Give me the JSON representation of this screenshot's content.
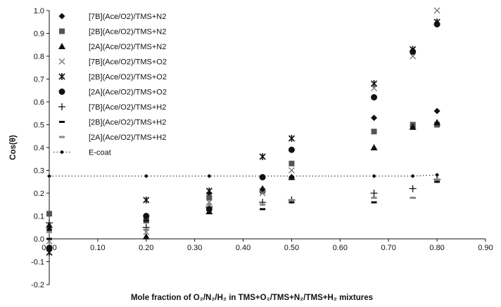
{
  "chart_data": {
    "type": "scatter",
    "xlabel": "Mole fraction of O₂/N₂/H₂ in TMS+O₂/TMS+N₂/TMS+H₂ mixtures",
    "ylabel": "Cos(θ)",
    "xlim": [
      0,
      0.9
    ],
    "ylim": [
      -0.2,
      1.0
    ],
    "x_ticks": [
      "0.00",
      "0.10",
      "0.20",
      "0.30",
      "0.40",
      "0.50",
      "0.60",
      "0.70",
      "0.80",
      "0.90"
    ],
    "y_ticks": [
      "-0.2",
      "-0.1",
      "0.0",
      "0.1",
      "0.2",
      "0.3",
      "0.4",
      "0.5",
      "0.6",
      "0.7",
      "0.8",
      "0.9",
      "1.0"
    ],
    "grid": false,
    "legend_position": "top-left",
    "series": [
      {
        "name": "[7B](Ace/O2)/TMS+N2",
        "marker": "diamond",
        "color": "#111111",
        "x": [
          0.0,
          0.2,
          0.33,
          0.44,
          0.5,
          0.67,
          0.75,
          0.8
        ],
        "y": [
          0.04,
          0.1,
          0.2,
          0.27,
          0.27,
          0.53,
          0.49,
          0.56
        ]
      },
      {
        "name": "[2B](Ace/O2)/TMS+N2",
        "marker": "square",
        "color": "#555555",
        "x": [
          0.0,
          0.2,
          0.33,
          0.44,
          0.5,
          0.67,
          0.75,
          0.8
        ],
        "y": [
          0.11,
          0.08,
          0.18,
          0.21,
          0.33,
          0.47,
          0.5,
          0.5
        ]
      },
      {
        "name": "[2A](Ace/O2)/TMS+N2",
        "marker": "triangle",
        "color": "#111111",
        "x": [
          0.0,
          0.2,
          0.33,
          0.44,
          0.5,
          0.67,
          0.75,
          0.8
        ],
        "y": [
          0.06,
          0.01,
          0.12,
          0.22,
          0.27,
          0.4,
          0.49,
          0.51
        ]
      },
      {
        "name": "[7B](Ace/O2)/TMS+O2",
        "marker": "x",
        "color": "#777777",
        "x": [
          0.0,
          0.2,
          0.33,
          0.44,
          0.5,
          0.67,
          0.75,
          0.8
        ],
        "y": [
          -0.01,
          0.03,
          0.16,
          0.2,
          0.3,
          0.66,
          0.8,
          1.0
        ]
      },
      {
        "name": "[2B](Ace/O2)/TMS+O2",
        "marker": "star",
        "color": "#111111",
        "x": [
          0.0,
          0.2,
          0.33,
          0.44,
          0.5,
          0.67,
          0.75,
          0.8
        ],
        "y": [
          -0.06,
          0.17,
          0.21,
          0.36,
          0.44,
          0.68,
          0.83,
          0.95
        ]
      },
      {
        "name": "[2A](Ace/O2)/TMS+O2",
        "marker": "circle",
        "color": "#111111",
        "x": [
          0.0,
          0.2,
          0.33,
          0.44,
          0.5,
          0.67,
          0.75,
          0.8
        ],
        "y": [
          -0.04,
          0.1,
          0.13,
          0.27,
          0.39,
          0.62,
          0.82,
          0.94
        ]
      },
      {
        "name": "[7B](Ace/O2)/TMS+H2",
        "marker": "plus",
        "color": "#111111",
        "x": [
          0.0,
          0.2,
          0.33,
          0.44,
          0.5,
          0.67,
          0.75,
          0.8
        ],
        "y": [
          0.07,
          0.05,
          0.14,
          0.16,
          0.17,
          0.2,
          0.22,
          0.26
        ]
      },
      {
        "name": "[2B](Ace/O2)/TMS+H2",
        "marker": "dash",
        "color": "#111111",
        "x": [
          0.0,
          0.2,
          0.33,
          0.44,
          0.5,
          0.67,
          0.75,
          0.8
        ],
        "y": [
          0.0,
          0.08,
          0.13,
          0.13,
          0.16,
          0.16,
          0.18,
          0.25
        ]
      },
      {
        "name": "[2A](Ace/O2)/TMS+H2",
        "marker": "dash-light",
        "color": "#888888",
        "x": [
          0.0,
          0.2,
          0.33,
          0.44,
          0.5,
          0.67,
          0.75,
          0.8
        ],
        "y": [
          0.03,
          0.04,
          0.15,
          0.15,
          0.17,
          0.18,
          0.18,
          0.26
        ]
      },
      {
        "name": "E-coat",
        "marker": "small-diamond-dotted",
        "color": "#111111",
        "x": [
          0.0,
          0.2,
          0.33,
          0.44,
          0.5,
          0.67,
          0.75,
          0.8
        ],
        "y": [
          0.275,
          0.275,
          0.275,
          0.275,
          0.275,
          0.275,
          0.275,
          0.28
        ]
      }
    ]
  }
}
